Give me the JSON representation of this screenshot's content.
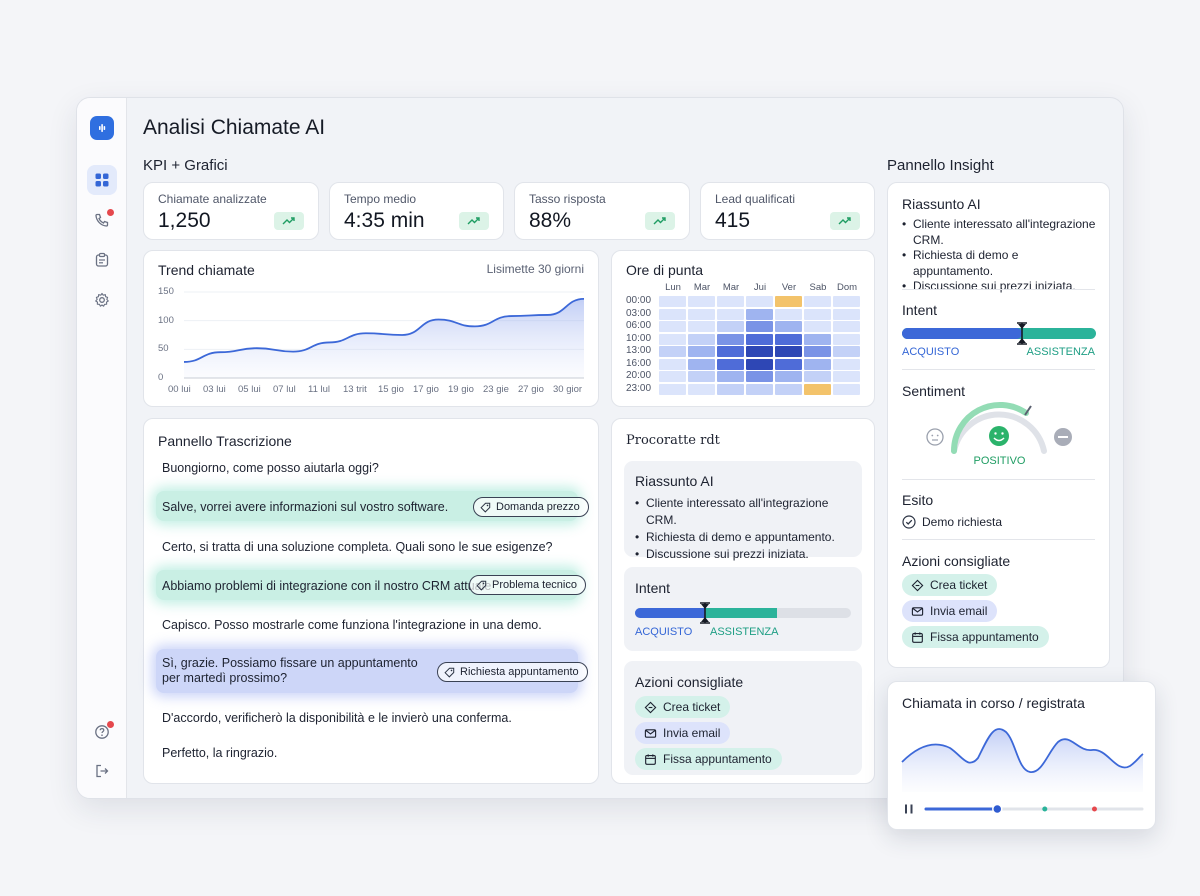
{
  "app": {
    "title": "Analisi Chiamate AI"
  },
  "sections": {
    "kpi": "KPI + Grafici",
    "insight": "Pannello Insight"
  },
  "kpis": [
    {
      "label": "Chiamate analizzate",
      "value": "1,250"
    },
    {
      "label": "Tempo medio",
      "value": "4:35 min"
    },
    {
      "label": "Tasso risposta",
      "value": "88%"
    },
    {
      "label": "Lead qualificati",
      "value": "415"
    }
  ],
  "trend": {
    "title": "Trend chiamate",
    "range": "Lisimette 30 giorni",
    "yticks": [
      "150",
      "100",
      "50",
      "0"
    ],
    "xticks": [
      "00 lui",
      "03 lui",
      "05 lui",
      "07 lul",
      "11 lul",
      "13 trit",
      "15 gio",
      "17 gio",
      "19 gio",
      "23 gie",
      "27 gio",
      "30 gior"
    ]
  },
  "chart_data": {
    "type": "area",
    "title": "Trend chiamate",
    "x": [
      "00 lui",
      "03 lui",
      "05 lui",
      "07 lul",
      "11 lul",
      "13 trit",
      "15 gio",
      "17 gio",
      "19 gio",
      "23 gie",
      "27 gio",
      "30 gior"
    ],
    "values": [
      28,
      45,
      52,
      46,
      62,
      78,
      75,
      102,
      90,
      108,
      110,
      138
    ],
    "ylim": [
      0,
      150
    ],
    "xlabel": "",
    "ylabel": ""
  },
  "heatmap": {
    "title": "Ore di punta",
    "days": [
      "Lun",
      "Mar",
      "Mar",
      "Jui",
      "Ver",
      "Sab",
      "Dom"
    ],
    "hours": [
      "00:00",
      "03:00",
      "06:00",
      "10:00",
      "13:00",
      "16:00",
      "20:00",
      "23:00"
    ],
    "levels": [
      [
        1,
        1,
        1,
        1,
        "h",
        1,
        1
      ],
      [
        1,
        1,
        1,
        3,
        1,
        1,
        1
      ],
      [
        1,
        1,
        2,
        4,
        3,
        1,
        1
      ],
      [
        1,
        2,
        4,
        5,
        5,
        3,
        1
      ],
      [
        2,
        3,
        5,
        6,
        6,
        4,
        2
      ],
      [
        1,
        3,
        5,
        6,
        5,
        3,
        1
      ],
      [
        1,
        2,
        3,
        4,
        3,
        2,
        1
      ],
      [
        1,
        1,
        2,
        2,
        2,
        "h",
        1
      ]
    ]
  },
  "transcript": {
    "title": "Pannello Trascrizione",
    "lines": [
      {
        "text": "Buongiorno, come posso aiutarla oggi?"
      },
      {
        "text": "Salve, vorrei avere informazioni sul vostro software.",
        "tag": "Domanda prezzo"
      },
      {
        "text": "Certo, si tratta di una soluzione completa. Quali sono le sue esigenze?"
      },
      {
        "text": "Abbiamo problemi di integrazione con il nostro CRM attuale",
        "tag": "Problema tecnico"
      },
      {
        "text": "Capisco. Posso mostrarle come funziona l'integrazione in una demo."
      },
      {
        "text": "Sì, grazie. Possiamo fissare un appuntamento",
        "text2": "per martedì prossimo?",
        "tag": "Richiesta appuntamento"
      },
      {
        "text": "D'accordo, verificherò la disponibilità e le invierò una conferma."
      },
      {
        "text": "Perfetto, la ringrazio."
      }
    ]
  },
  "mid_panel": {
    "title": "Procoratte rdt",
    "summary_title": "Riassunto AI",
    "summary": [
      "Cliente interessato all'integrazione CRM.",
      "Richiesta di demo e appuntamento.",
      "Discussione sui prezzi iniziata."
    ],
    "intent_title": "Intent",
    "intent_left": "ACQUISTO",
    "intent_right": "ASSISTENZA",
    "actions_title": "Azioni consigliate",
    "actions": [
      "Crea ticket",
      "Invia email",
      "Fissa appuntamento"
    ]
  },
  "insight": {
    "summary_title": "Riassunto AI",
    "summary": [
      "Cliente interessato all'integrazione CRM.",
      "Richiesta di demo e appuntamento.",
      "Discussione sui prezzi iniziata."
    ],
    "intent_title": "Intent",
    "intent_left": "ACQUISTO",
    "intent_right": "ASSISTENZA",
    "sentiment_title": "Sentiment",
    "sentiment_value": "POSITIVO",
    "esito_title": "Esito",
    "esito_value": "Demo richiesta",
    "actions_title": "Azioni consigliate",
    "actions": [
      "Crea ticket",
      "Invia email",
      "Fissa appuntamento"
    ]
  },
  "live_call": {
    "title": "Chiamata in corso / registrata",
    "progress": 0.33
  },
  "colors": {
    "accent": "#3466d6",
    "teal": "#2bb39a",
    "red": "#e5484d",
    "heat_peak": "#f3c36b"
  }
}
